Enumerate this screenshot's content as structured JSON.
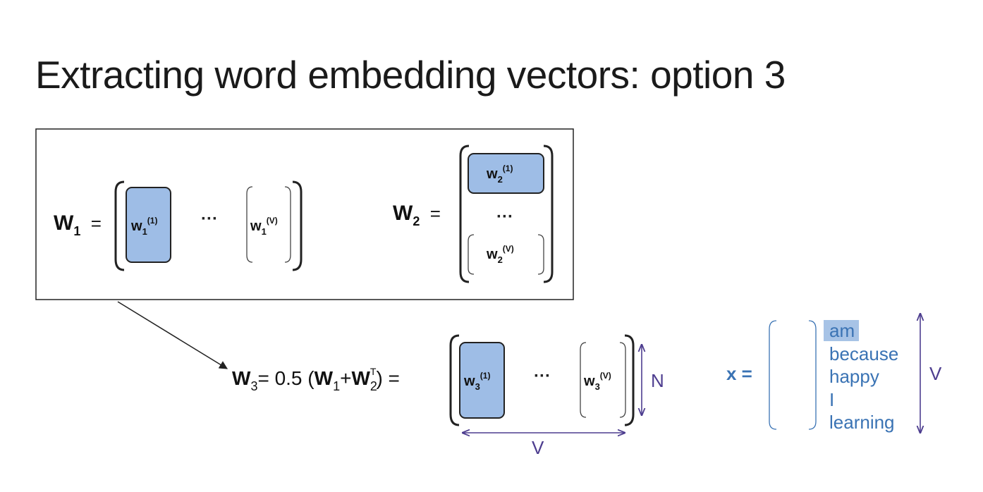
{
  "title": "Extracting word embedding vectors: option 3",
  "colors": {
    "accent_fill": "#9ebde6",
    "accent_stroke": "#222222",
    "vocab_text": "#3a73b4",
    "dimension_arrow": "#4d3d8f"
  },
  "w1": {
    "name": "W",
    "subscript": "1",
    "equals": "=",
    "first_col": "w",
    "first_sub": "1",
    "first_sup": "(1)",
    "dots": "···",
    "last_col": "w",
    "last_sub": "1",
    "last_sup": "(V)"
  },
  "w2": {
    "name": "W",
    "subscript": "2",
    "equals": "=",
    "first_row": "w",
    "first_sub": "2",
    "first_sup": "(1)",
    "dots": "···",
    "last_row": "w",
    "last_sub": "2",
    "last_sup": "(V)"
  },
  "w3": {
    "name": "W",
    "subscript": "3",
    "formula_mid": "= 0.5 (",
    "w1": "W",
    "w1_sub": "1",
    "plus": "+",
    "w2": "W",
    "w2_sub": "2",
    "w2_sup": "T",
    "close": ") =",
    "first_col": "w",
    "first_sub": "3",
    "first_sup": "(1)",
    "dots": "···",
    "last_col": "w",
    "last_sub": "3",
    "last_sup": "(V)",
    "dim_rows": "N",
    "dim_cols": "V"
  },
  "x_vector": {
    "label": "x =",
    "vocabulary": [
      "am",
      "because",
      "happy",
      "I",
      "learning"
    ],
    "highlighted_index": 0,
    "dim": "V"
  }
}
